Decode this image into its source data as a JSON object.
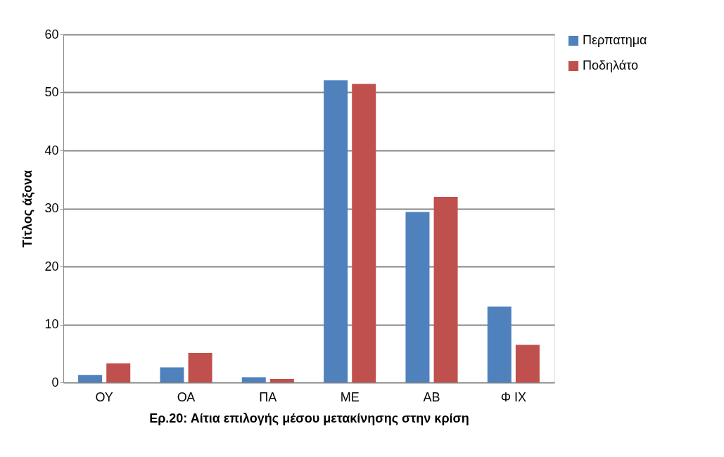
{
  "chart_data": {
    "type": "bar",
    "xlabel": "Ερ.20: Αίτια επιλογής μέσου μετακίνησης στην κρίση",
    "ylabel": "Τίτλος άξονα",
    "categories": [
      "ΟΥ",
      "ΟΑ",
      "ΠΑ",
      "ΜΕ",
      "ΑΒ",
      "Φ ΙΧ"
    ],
    "series": [
      {
        "name": "Περπατημα",
        "color": "#4f81bd",
        "values": [
          1.3,
          2.6,
          0.9,
          52.1,
          29.4,
          13.1
        ]
      },
      {
        "name": "Ποδηλάτο",
        "color": "#c0504d",
        "values": [
          3.3,
          5.1,
          0.6,
          51.5,
          32.0,
          6.5
        ]
      }
    ],
    "ylim": [
      0,
      60
    ],
    "yticks": [
      0,
      10,
      20,
      30,
      40,
      50,
      60
    ],
    "grid": "y",
    "legend": "right"
  }
}
